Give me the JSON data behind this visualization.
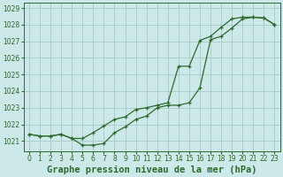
{
  "title": "Graphe pression niveau de la mer (hPa)",
  "bg_color": "#cce8e8",
  "grid_color": "#aacece",
  "line_color": "#2d6a2d",
  "xlim": [
    -0.5,
    23.5
  ],
  "ylim": [
    1020.4,
    1029.3
  ],
  "yticks": [
    1021,
    1022,
    1023,
    1024,
    1025,
    1026,
    1027,
    1028,
    1029
  ],
  "xticks": [
    0,
    1,
    2,
    3,
    4,
    5,
    6,
    7,
    8,
    9,
    10,
    11,
    12,
    13,
    14,
    15,
    16,
    17,
    18,
    19,
    20,
    21,
    22,
    23
  ],
  "line1_x": [
    0,
    1,
    2,
    3,
    4,
    5,
    6,
    7,
    8,
    9,
    10,
    11,
    12,
    13,
    14,
    15,
    16,
    17,
    18,
    19,
    20,
    21,
    22,
    23
  ],
  "line1_y": [
    1021.4,
    1021.3,
    1021.3,
    1021.4,
    1021.15,
    1020.75,
    1020.75,
    1020.85,
    1021.5,
    1021.85,
    1022.3,
    1022.5,
    1023.0,
    1023.15,
    1023.15,
    1023.3,
    1024.2,
    1027.1,
    1027.3,
    1027.8,
    1028.35,
    1028.45,
    1028.4,
    1028.0
  ],
  "line2_x": [
    0,
    1,
    2,
    3,
    4,
    5,
    6,
    7,
    8,
    9,
    10,
    11,
    12,
    13,
    14,
    15,
    16,
    17,
    18,
    19,
    20,
    21,
    22,
    23
  ],
  "line2_y": [
    1021.4,
    1021.3,
    1021.3,
    1021.4,
    1021.15,
    1021.15,
    1021.5,
    1021.9,
    1022.3,
    1022.45,
    1022.9,
    1023.0,
    1023.15,
    1023.3,
    1025.5,
    1025.5,
    1027.05,
    1027.3,
    1027.85,
    1028.35,
    1028.45,
    1028.45,
    1028.4,
    1028.0
  ],
  "title_fontsize": 7.5,
  "tick_fontsize": 5.5
}
